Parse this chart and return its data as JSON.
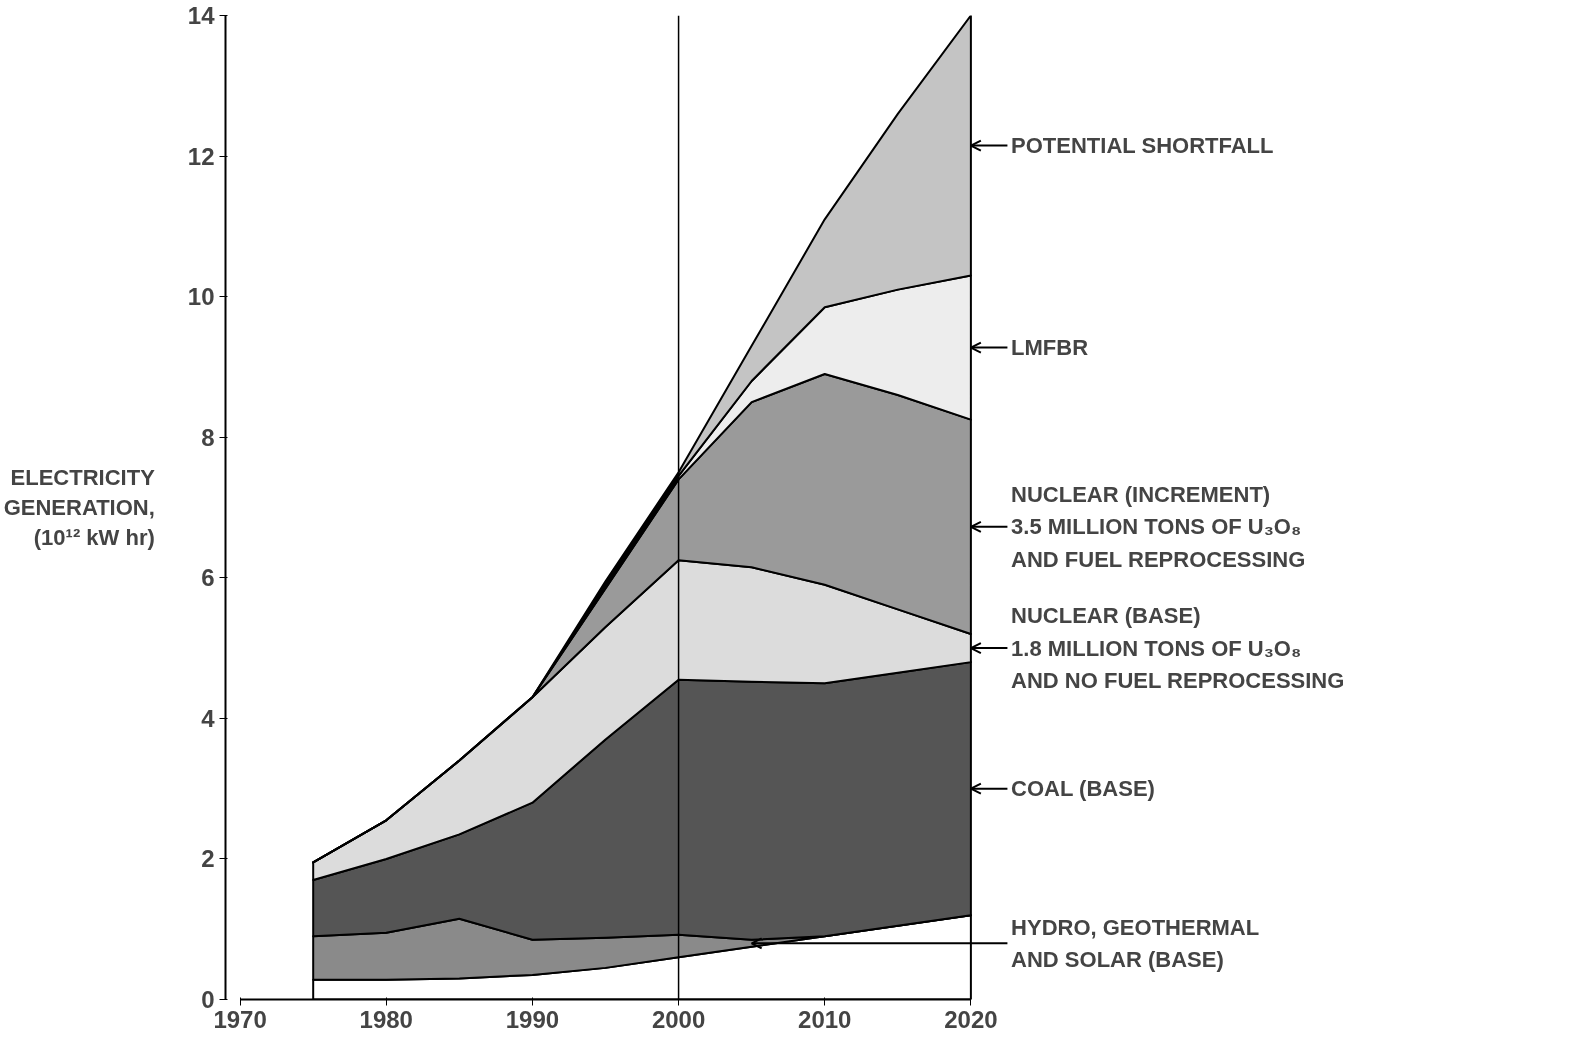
{
  "chart_data": {
    "type": "area",
    "stacked": true,
    "ylabel": "ELECTRICITY\nGENERATION,\n(10¹² kW hr)",
    "x": [
      1975,
      1980,
      1985,
      1990,
      1995,
      2000,
      2005,
      2010,
      2015,
      2020
    ],
    "xlim": [
      1970,
      2020
    ],
    "xticks": [
      1970,
      1980,
      1990,
      2000,
      2010,
      2020
    ],
    "ylim": [
      0,
      14
    ],
    "yticks": [
      0,
      2,
      4,
      6,
      8,
      10,
      12,
      14
    ],
    "grid": false,
    "legend": "right",
    "ref_lines": [
      {
        "axis": "x",
        "value": 2000,
        "label": null
      }
    ],
    "series": [
      {
        "color": "#ffffff",
        "values": [
          0.28,
          0.28,
          0.3,
          0.35,
          0.45,
          0.6,
          0.75,
          0.9,
          1.05,
          1.2
        ]
      },
      {
        "name": "HYDRO, GEOTHERMAL\nAND SOLAR (BASE)",
        "color": "#8a8a8a",
        "values": [
          0.62,
          0.67,
          0.85,
          0.5,
          0.43,
          0.32,
          0.1,
          0,
          0,
          0
        ]
      },
      {
        "name": "COAL (BASE)",
        "color": "#555555",
        "values": [
          0.8,
          1.05,
          1.2,
          1.95,
          2.82,
          3.63,
          3.67,
          3.6,
          3.6,
          3.6
        ]
      },
      {
        "name": "NUCLEAR (BASE)\n1.8 MILLION TONS OF U₃O₈\nAND NO FUEL REPROCESSING",
        "color": "#dcdcdc",
        "values": [
          0.25,
          0.55,
          1.05,
          1.5,
          1.6,
          1.7,
          1.63,
          1.4,
          0.9,
          0.4
        ]
      },
      {
        "name": "NUCLEAR (INCREMENT)\n3.5 MILLION TONS OF U₃O₈\nAND FUEL REPROCESSING",
        "color": "#9a9a9a",
        "values": [
          0,
          0,
          0,
          0,
          0.55,
          1.15,
          2.35,
          3.0,
          3.05,
          3.05
        ]
      },
      {
        "name": "LMFBR",
        "color": "#ededed",
        "values": [
          0,
          0,
          0,
          0,
          0.05,
          0.05,
          0.3,
          0.95,
          1.5,
          2.05
        ]
      },
      {
        "name": "POTENTIAL SHORTFALL",
        "color": "#c4c4c4",
        "values": [
          0,
          0,
          0,
          0,
          0.05,
          0.05,
          0.5,
          1.25,
          2.5,
          3.7
        ]
      }
    ]
  }
}
